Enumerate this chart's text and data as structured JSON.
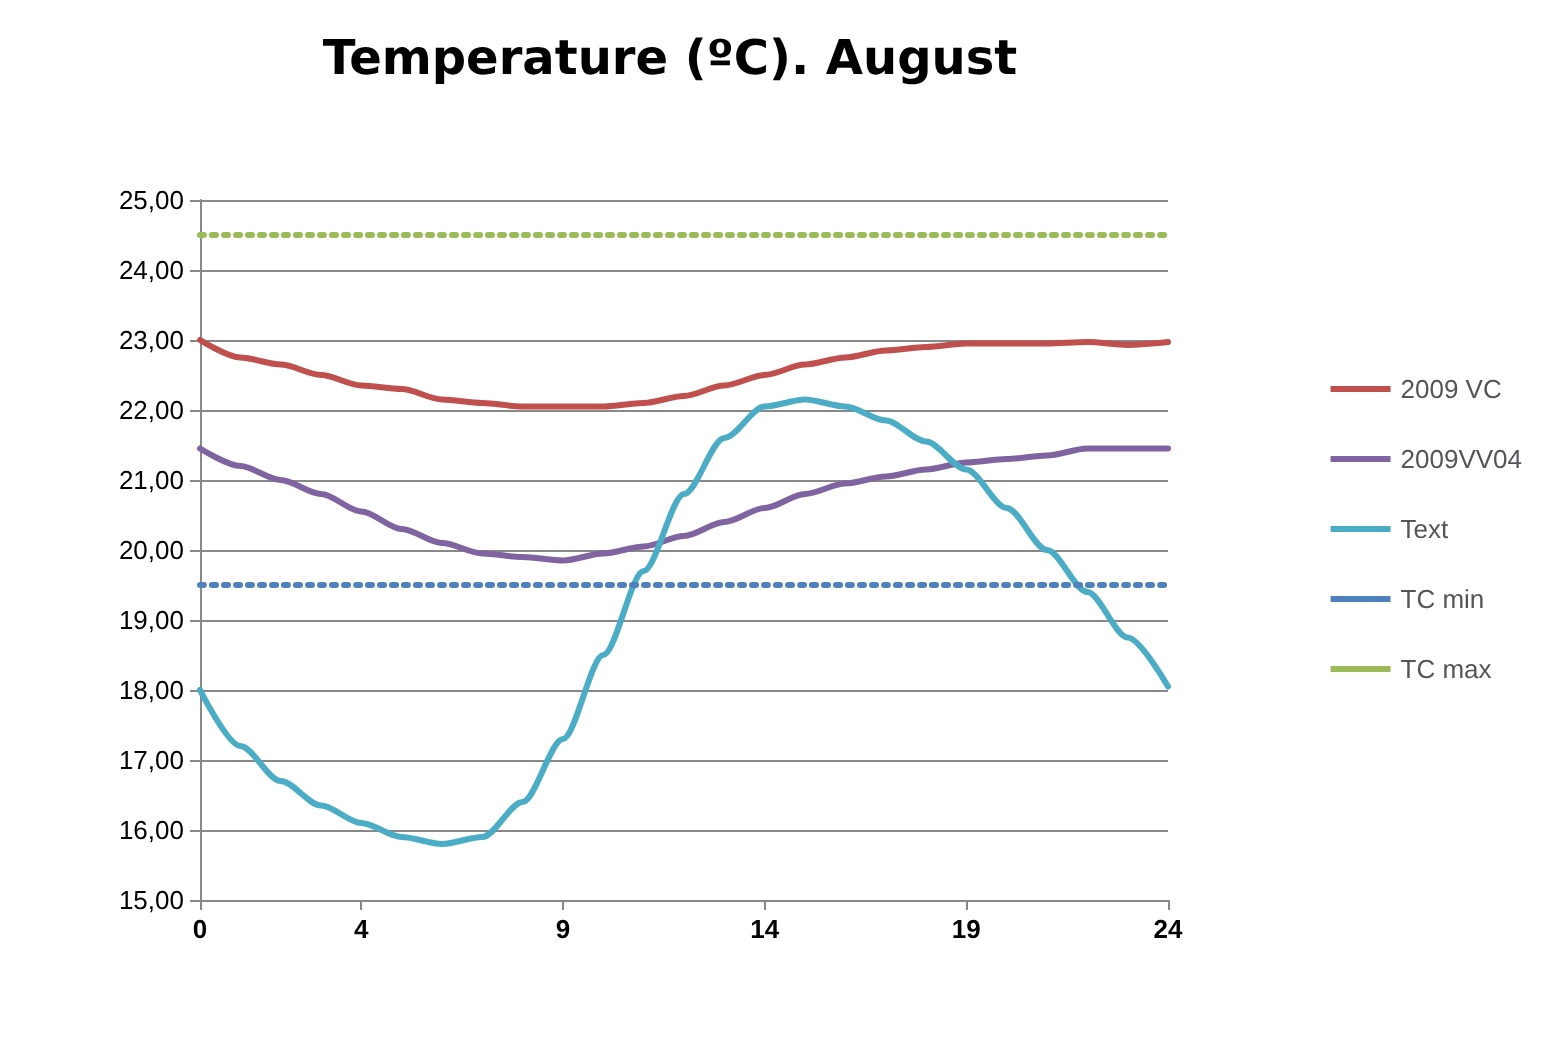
{
  "chart_data": {
    "type": "line",
    "title": "Temperature (ºC). August",
    "x": [
      0,
      1,
      2,
      3,
      4,
      5,
      6,
      7,
      8,
      9,
      10,
      11,
      12,
      13,
      14,
      15,
      16,
      17,
      18,
      19,
      20,
      21,
      22,
      23,
      24
    ],
    "xlim": [
      0,
      24
    ],
    "xticks": [
      0,
      4,
      9,
      14,
      19,
      24
    ],
    "ylim": [
      15,
      25
    ],
    "yticks": [
      {
        "value": 15,
        "label": "15,00"
      },
      {
        "value": 16,
        "label": "16,00"
      },
      {
        "value": 17,
        "label": "17,00"
      },
      {
        "value": 18,
        "label": "18,00"
      },
      {
        "value": 19,
        "label": "19,00"
      },
      {
        "value": 20,
        "label": "20,00"
      },
      {
        "value": 21,
        "label": "21,00"
      },
      {
        "value": 22,
        "label": "22,00"
      },
      {
        "value": 23,
        "label": "23,00"
      },
      {
        "value": 24,
        "label": "24,00"
      },
      {
        "value": 25,
        "label": "25,00"
      }
    ],
    "grid": "y",
    "legend": "right",
    "marker": "none",
    "series": [
      {
        "name": "2009 VC",
        "color": "#c0504d",
        "line_style": "solid",
        "values": [
          23.0,
          22.75,
          22.65,
          22.5,
          22.35,
          22.3,
          22.15,
          22.1,
          22.05,
          22.05,
          22.05,
          22.1,
          22.2,
          22.35,
          22.5,
          22.65,
          22.75,
          22.85,
          22.9,
          22.95,
          22.95,
          22.95,
          22.97,
          22.93,
          22.97
        ]
      },
      {
        "name": "2009VV04",
        "color": "#8064a2",
        "line_style": "solid",
        "values": [
          21.45,
          21.2,
          21.0,
          20.8,
          20.55,
          20.3,
          20.1,
          19.95,
          19.9,
          19.85,
          19.95,
          20.05,
          20.2,
          20.4,
          20.6,
          20.8,
          20.95,
          21.05,
          21.15,
          21.25,
          21.3,
          21.35,
          21.45,
          21.45,
          21.45
        ]
      },
      {
        "name": "Text",
        "color": "#4bacc6",
        "line_style": "solid",
        "values": [
          18.0,
          17.2,
          16.7,
          16.35,
          16.1,
          15.9,
          15.8,
          15.9,
          16.4,
          17.3,
          18.5,
          19.7,
          20.8,
          21.6,
          22.05,
          22.15,
          22.05,
          21.85,
          21.55,
          21.15,
          20.6,
          20.0,
          19.4,
          18.75,
          18.05
        ]
      },
      {
        "name": "TC min",
        "color": "#4f81bd",
        "line_style": "dotted",
        "values": [
          19.5,
          19.5,
          19.5,
          19.5,
          19.5,
          19.5,
          19.5,
          19.5,
          19.5,
          19.5,
          19.5,
          19.5,
          19.5,
          19.5,
          19.5,
          19.5,
          19.5,
          19.5,
          19.5,
          19.5,
          19.5,
          19.5,
          19.5,
          19.5,
          19.5
        ]
      },
      {
        "name": "TC max",
        "color": "#9bbb59",
        "line_style": "dotted",
        "values": [
          24.5,
          24.5,
          24.5,
          24.5,
          24.5,
          24.5,
          24.5,
          24.5,
          24.5,
          24.5,
          24.5,
          24.5,
          24.5,
          24.5,
          24.5,
          24.5,
          24.5,
          24.5,
          24.5,
          24.5,
          24.5,
          24.5,
          24.5,
          24.5,
          24.5
        ]
      }
    ]
  }
}
